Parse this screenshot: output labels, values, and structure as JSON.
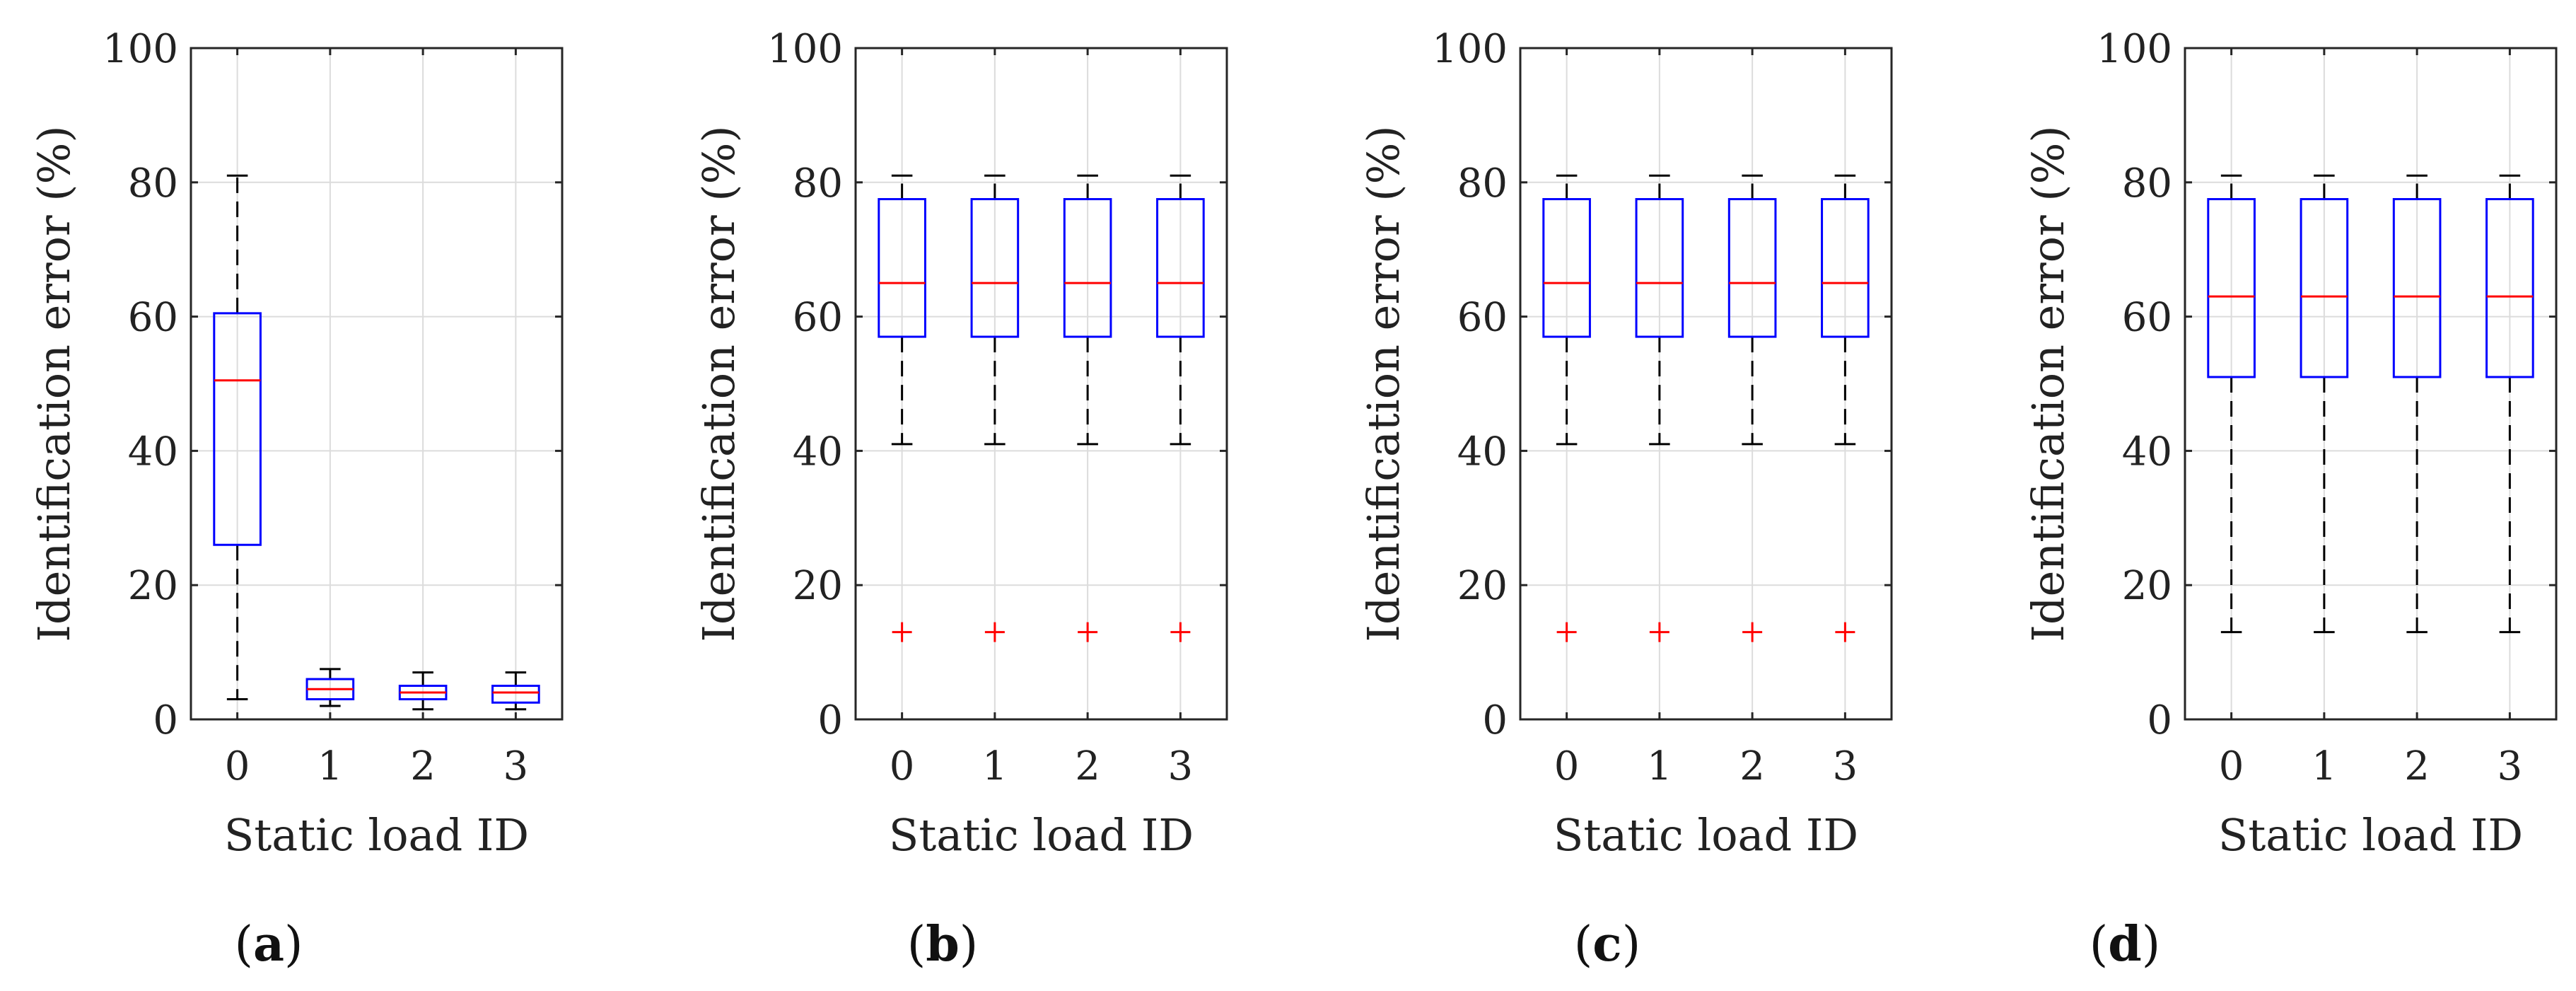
{
  "chart_data": [
    {
      "type": "boxplot",
      "panel_label": "a",
      "xlabel": "Static load ID",
      "ylabel": "Identification error (%)",
      "ylim": [
        0,
        100
      ],
      "yticks": [
        0,
        20,
        40,
        60,
        80,
        100
      ],
      "grid": true,
      "categories": [
        "0",
        "1",
        "2",
        "3"
      ],
      "boxes": [
        {
          "category": "0",
          "whisker_low": 3,
          "q1": 26,
          "median": 50.5,
          "q3": 60.5,
          "whisker_high": 81,
          "outliers": []
        },
        {
          "category": "1",
          "whisker_low": 2,
          "q1": 3,
          "median": 4.5,
          "q3": 6,
          "whisker_high": 7.5,
          "outliers": []
        },
        {
          "category": "2",
          "whisker_low": 1.5,
          "q1": 3,
          "median": 4,
          "q3": 5,
          "whisker_high": 7,
          "outliers": []
        },
        {
          "category": "3",
          "whisker_low": 1.5,
          "q1": 2.5,
          "median": 4,
          "q3": 5,
          "whisker_high": 7,
          "outliers": []
        }
      ]
    },
    {
      "type": "boxplot",
      "panel_label": "b",
      "xlabel": "Static load ID",
      "ylabel": "Identification error (%)",
      "ylim": [
        0,
        100
      ],
      "yticks": [
        0,
        20,
        40,
        60,
        80,
        100
      ],
      "grid": true,
      "categories": [
        "0",
        "1",
        "2",
        "3"
      ],
      "boxes": [
        {
          "category": "0",
          "whisker_low": 41,
          "q1": 57,
          "median": 65,
          "q3": 77.5,
          "whisker_high": 81,
          "outliers": [
            13
          ]
        },
        {
          "category": "1",
          "whisker_low": 41,
          "q1": 57,
          "median": 65,
          "q3": 77.5,
          "whisker_high": 81,
          "outliers": [
            13
          ]
        },
        {
          "category": "2",
          "whisker_low": 41,
          "q1": 57,
          "median": 65,
          "q3": 77.5,
          "whisker_high": 81,
          "outliers": [
            13
          ]
        },
        {
          "category": "3",
          "whisker_low": 41,
          "q1": 57,
          "median": 65,
          "q3": 77.5,
          "whisker_high": 81,
          "outliers": [
            13
          ]
        }
      ]
    },
    {
      "type": "boxplot",
      "panel_label": "c",
      "xlabel": "Static load ID",
      "ylabel": "Identification error (%)",
      "ylim": [
        0,
        100
      ],
      "yticks": [
        0,
        20,
        40,
        60,
        80,
        100
      ],
      "grid": true,
      "categories": [
        "0",
        "1",
        "2",
        "3"
      ],
      "boxes": [
        {
          "category": "0",
          "whisker_low": 41,
          "q1": 57,
          "median": 65,
          "q3": 77.5,
          "whisker_high": 81,
          "outliers": [
            13
          ]
        },
        {
          "category": "1",
          "whisker_low": 41,
          "q1": 57,
          "median": 65,
          "q3": 77.5,
          "whisker_high": 81,
          "outliers": [
            13
          ]
        },
        {
          "category": "2",
          "whisker_low": 41,
          "q1": 57,
          "median": 65,
          "q3": 77.5,
          "whisker_high": 81,
          "outliers": [
            13
          ]
        },
        {
          "category": "3",
          "whisker_low": 41,
          "q1": 57,
          "median": 65,
          "q3": 77.5,
          "whisker_high": 81,
          "outliers": [
            13
          ]
        }
      ]
    },
    {
      "type": "boxplot",
      "panel_label": "d",
      "xlabel": "Static load ID",
      "ylabel": "Identification error (%)",
      "ylim": [
        0,
        100
      ],
      "yticks": [
        0,
        20,
        40,
        60,
        80,
        100
      ],
      "grid": true,
      "categories": [
        "0",
        "1",
        "2",
        "3"
      ],
      "boxes": [
        {
          "category": "0",
          "whisker_low": 13,
          "q1": 51,
          "median": 63,
          "q3": 77.5,
          "whisker_high": 81,
          "outliers": []
        },
        {
          "category": "1",
          "whisker_low": 13,
          "q1": 51,
          "median": 63,
          "q3": 77.5,
          "whisker_high": 81,
          "outliers": []
        },
        {
          "category": "2",
          "whisker_low": 13,
          "q1": 51,
          "median": 63,
          "q3": 77.5,
          "whisker_high": 81,
          "outliers": []
        },
        {
          "category": "3",
          "whisker_low": 13,
          "q1": 51,
          "median": 63,
          "q3": 77.5,
          "whisker_high": 81,
          "outliers": []
        }
      ]
    }
  ],
  "colors": {
    "box": "#0000ff",
    "median": "#ff0000",
    "whisker": "#000000",
    "outlier": "#ff0000",
    "grid": "#dcdcdc",
    "axes": "#262626"
  }
}
